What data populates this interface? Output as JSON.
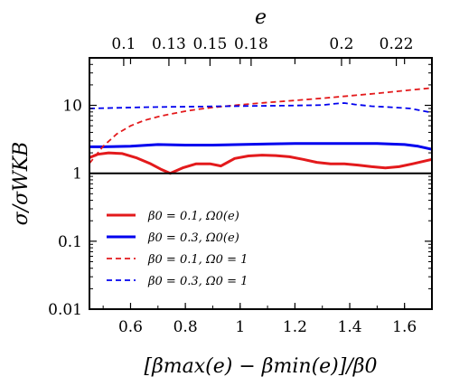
{
  "chart_data": {
    "type": "line",
    "xlabel": "[βmax(e) − βmin(e)]/β0",
    "ylabel": "σ/σWKB",
    "top_xlabel": "e",
    "xlim": [
      0.45,
      1.7
    ],
    "ylim": [
      0.01,
      50
    ],
    "yscale": "log",
    "x_ticks": [
      "0.6",
      "0.8",
      "1",
      "1.2",
      "1.4",
      "1.6"
    ],
    "x_tick_values": [
      0.6,
      0.8,
      1.0,
      1.2,
      1.4,
      1.6
    ],
    "y_ticks": [
      "0.01",
      "0.1",
      "1",
      "10"
    ],
    "y_tick_values": [
      0.01,
      0.1,
      1,
      10
    ],
    "top_ticks": [
      "0.1",
      "0.13",
      "0.15",
      "0.18",
      "0.2",
      "0.22"
    ],
    "top_tick_positions_x": [
      0.575,
      0.74,
      0.89,
      1.04,
      1.37,
      1.57
    ],
    "reference_line": {
      "y": 1,
      "color": "#000000"
    },
    "legend_position": "lower-left",
    "series": [
      {
        "name": "β0 = 0.1, Ω0(e)",
        "color": "#e31a1c",
        "style": "solid",
        "x": [
          0.45,
          0.48,
          0.52,
          0.57,
          0.62,
          0.67,
          0.71,
          0.745,
          0.79,
          0.84,
          0.89,
          0.93,
          0.98,
          1.03,
          1.08,
          1.13,
          1.18,
          1.23,
          1.28,
          1.33,
          1.38,
          1.43,
          1.48,
          1.53,
          1.58,
          1.63,
          1.7
        ],
        "y": [
          1.7,
          1.9,
          2.0,
          1.95,
          1.7,
          1.4,
          1.15,
          1.0,
          1.2,
          1.38,
          1.38,
          1.28,
          1.65,
          1.8,
          1.85,
          1.82,
          1.75,
          1.6,
          1.45,
          1.38,
          1.38,
          1.32,
          1.25,
          1.2,
          1.25,
          1.38,
          1.6
        ]
      },
      {
        "name": "β0 = 0.3, Ω0(e)",
        "color": "#0000ee",
        "style": "solid",
        "x": [
          0.45,
          0.5,
          0.6,
          0.7,
          0.8,
          0.9,
          1.0,
          1.1,
          1.2,
          1.3,
          1.4,
          1.5,
          1.6,
          1.65,
          1.7
        ],
        "y": [
          2.45,
          2.45,
          2.5,
          2.65,
          2.6,
          2.6,
          2.65,
          2.7,
          2.75,
          2.75,
          2.75,
          2.75,
          2.65,
          2.5,
          2.25
        ]
      },
      {
        "name": "β0 = 0.1, Ω0 = 1",
        "color": "#e31a1c",
        "style": "dashed",
        "x": [
          0.45,
          0.5,
          0.55,
          0.6,
          0.65,
          0.7,
          0.75,
          0.8,
          0.85,
          0.9,
          1.0,
          1.1,
          1.2,
          1.3,
          1.4,
          1.5,
          1.6,
          1.7
        ],
        "y": [
          1.4,
          2.5,
          3.8,
          5.0,
          6.0,
          6.8,
          7.5,
          8.2,
          8.8,
          9.3,
          10.2,
          11.0,
          11.8,
          12.7,
          13.8,
          15.0,
          16.5,
          18.0
        ]
      },
      {
        "name": "β0 = 0.3, Ω0 = 1",
        "color": "#0000ee",
        "style": "dashed",
        "x": [
          0.45,
          0.55,
          0.65,
          0.75,
          0.85,
          0.95,
          1.05,
          1.15,
          1.25,
          1.3,
          1.35,
          1.38,
          1.42,
          1.48,
          1.55,
          1.62,
          1.7
        ],
        "y": [
          9.0,
          9.2,
          9.4,
          9.5,
          9.6,
          9.7,
          9.8,
          9.9,
          10.0,
          10.1,
          10.6,
          10.8,
          10.3,
          9.7,
          9.4,
          9.0,
          7.8
        ]
      }
    ]
  }
}
